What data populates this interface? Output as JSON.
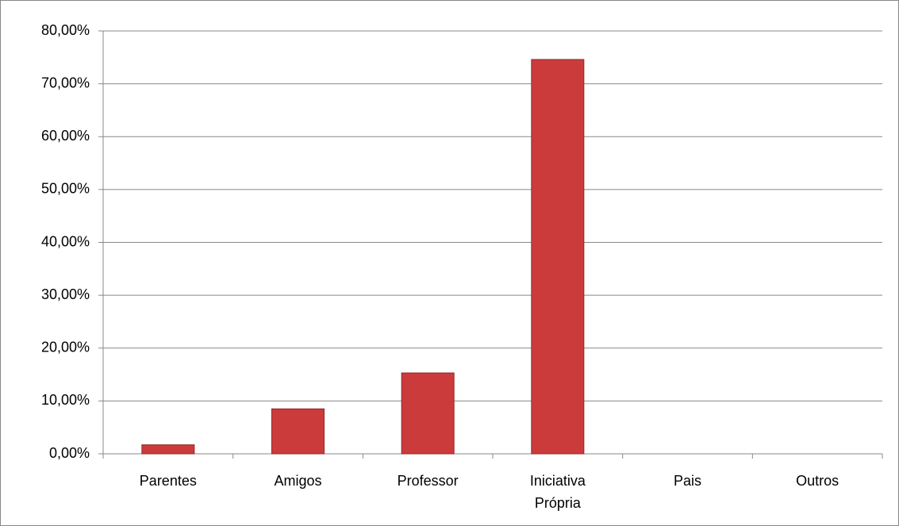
{
  "chart_data": {
    "type": "bar",
    "categories": [
      "Parentes",
      "Amigos",
      "Professor",
      "Iniciativa Própria",
      "Pais",
      "Outros"
    ],
    "values": [
      1.7,
      8.5,
      15.3,
      74.6,
      0,
      0
    ],
    "color": "#cc3b3b",
    "ylim": [
      0,
      80
    ],
    "yticks": [
      {
        "value": 0,
        "label": "0,00%"
      },
      {
        "value": 10,
        "label": "10,00%"
      },
      {
        "value": 20,
        "label": "20,00%"
      },
      {
        "value": 30,
        "label": "30,00%"
      },
      {
        "value": 40,
        "label": "40,00%"
      },
      {
        "value": 50,
        "label": "50,00%"
      },
      {
        "value": 60,
        "label": "60,00%"
      },
      {
        "value": 70,
        "label": "70,00%"
      },
      {
        "value": 80,
        "label": "80,00%"
      }
    ],
    "grid": true
  }
}
